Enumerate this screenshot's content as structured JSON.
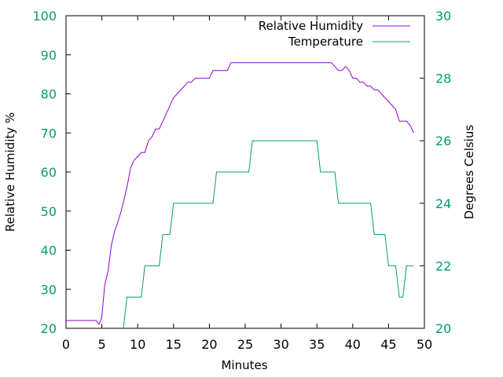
{
  "chart_data": {
    "type": "line",
    "xlabel": "Minutes",
    "ylabel_left": "Relative Humidity %",
    "ylabel_right": "Degrees Celsius",
    "xlim": [
      0,
      50
    ],
    "ylim_left": [
      20,
      100
    ],
    "ylim_right": [
      20,
      30
    ],
    "xticks": [
      "0",
      "5",
      "10",
      "15",
      "20",
      "25",
      "30",
      "35",
      "40",
      "45",
      "50"
    ],
    "yticks_left": [
      "20",
      "30",
      "40",
      "50",
      "60",
      "70",
      "80",
      "90",
      "100"
    ],
    "yticks_right": [
      "20",
      "22",
      "24",
      "26",
      "28",
      "30"
    ],
    "grid": false,
    "legend_position": "top-right",
    "tick_color": "#009e73",
    "series": [
      {
        "name": "Relative Humidity",
        "axis": "left",
        "color": "#9400d3",
        "points": [
          [
            0,
            22
          ],
          [
            4.2,
            22
          ],
          [
            4.6,
            21
          ],
          [
            5.0,
            23
          ],
          [
            5.4,
            31
          ],
          [
            5.9,
            35
          ],
          [
            6.3,
            41
          ],
          [
            6.8,
            45
          ],
          [
            7.2,
            47
          ],
          [
            7.7,
            50
          ],
          [
            8.1,
            53
          ],
          [
            8.6,
            57
          ],
          [
            9.0,
            61
          ],
          [
            9.5,
            63
          ],
          [
            10.0,
            64
          ],
          [
            10.5,
            65
          ],
          [
            11.0,
            65
          ],
          [
            11.5,
            68
          ],
          [
            12.0,
            69
          ],
          [
            12.5,
            71
          ],
          [
            13.0,
            71
          ],
          [
            13.5,
            73
          ],
          [
            14.0,
            75
          ],
          [
            14.5,
            77
          ],
          [
            15.0,
            79
          ],
          [
            15.5,
            80
          ],
          [
            16.0,
            81
          ],
          [
            16.5,
            82
          ],
          [
            17.0,
            83
          ],
          [
            17.5,
            83
          ],
          [
            18.0,
            84
          ],
          [
            19.5,
            84
          ],
          [
            20.0,
            84
          ],
          [
            20.5,
            86
          ],
          [
            22.5,
            86
          ],
          [
            23.0,
            88
          ],
          [
            37.0,
            88
          ],
          [
            37.5,
            87
          ],
          [
            38.0,
            86
          ],
          [
            38.5,
            86
          ],
          [
            39.0,
            87
          ],
          [
            39.5,
            86
          ],
          [
            40.0,
            84
          ],
          [
            40.5,
            84
          ],
          [
            41.0,
            83
          ],
          [
            41.5,
            83
          ],
          [
            42.0,
            82
          ],
          [
            42.5,
            82
          ],
          [
            43.0,
            81
          ],
          [
            43.5,
            81
          ],
          [
            44.0,
            80
          ],
          [
            44.5,
            79
          ],
          [
            45.0,
            78
          ],
          [
            45.5,
            77
          ],
          [
            46.0,
            76
          ],
          [
            46.5,
            73
          ],
          [
            47.0,
            73
          ],
          [
            47.5,
            73
          ],
          [
            48.0,
            72
          ],
          [
            48.5,
            70
          ]
        ]
      },
      {
        "name": "Temperature",
        "axis": "right",
        "color": "#009e73",
        "points": [
          [
            8.0,
            20
          ],
          [
            8.5,
            21
          ],
          [
            10.5,
            21
          ],
          [
            11.0,
            22
          ],
          [
            13.0,
            22
          ],
          [
            13.5,
            23
          ],
          [
            14.5,
            23
          ],
          [
            15.0,
            24
          ],
          [
            20.5,
            24
          ],
          [
            21.0,
            25
          ],
          [
            25.5,
            25
          ],
          [
            26.0,
            26
          ],
          [
            35.0,
            26
          ],
          [
            35.5,
            25
          ],
          [
            37.5,
            25
          ],
          [
            38.0,
            24
          ],
          [
            42.5,
            24
          ],
          [
            43.0,
            23
          ],
          [
            44.5,
            23
          ],
          [
            45.0,
            22
          ],
          [
            46.0,
            22
          ],
          [
            46.5,
            21
          ],
          [
            47.0,
            21
          ],
          [
            47.5,
            22
          ],
          [
            48.5,
            22
          ]
        ]
      }
    ]
  }
}
